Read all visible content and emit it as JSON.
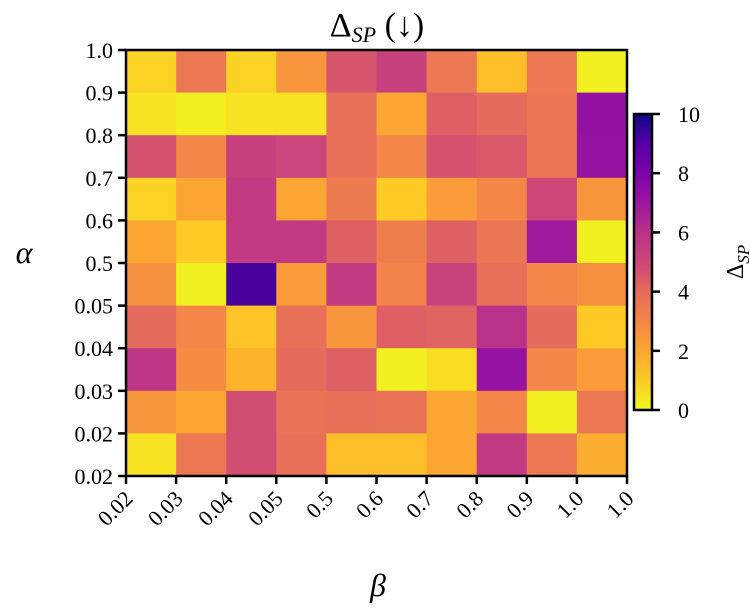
{
  "chart_data": {
    "type": "heatmap",
    "title": "Δ_SP (↓)",
    "xlabel": "β",
    "ylabel": "α",
    "x_categories": [
      "0.02",
      "0.03",
      "0.04",
      "0.05",
      "0.5",
      "0.6",
      "0.7",
      "0.8",
      "0.9",
      "1.0"
    ],
    "y_categories_top_to_bottom": [
      "1.0",
      "0.9",
      "0.8",
      "0.7",
      "0.6",
      "0.5",
      "0.05",
      "0.04",
      "0.03",
      "0.02"
    ],
    "values_top_to_bottom": [
      [
        0.8,
        3.5,
        0.8,
        2.5,
        4.6,
        5.3,
        3.5,
        1.3,
        3.5,
        0.2
      ],
      [
        0.5,
        0.2,
        0.5,
        0.5,
        3.8,
        2.0,
        4.3,
        4.0,
        3.6,
        7.3
      ],
      [
        4.7,
        3.0,
        5.3,
        5.1,
        3.8,
        3.0,
        4.7,
        4.5,
        3.6,
        7.2
      ],
      [
        0.8,
        2.0,
        5.6,
        2.0,
        3.4,
        1.0,
        2.3,
        3.0,
        5.0,
        2.5
      ],
      [
        2.0,
        1.0,
        5.6,
        5.6,
        4.3,
        3.3,
        4.3,
        3.6,
        6.9,
        0.2
      ],
      [
        2.7,
        0.2,
        9.2,
        2.3,
        5.6,
        3.1,
        5.2,
        3.8,
        3.0,
        2.7
      ],
      [
        4.0,
        3.0,
        1.2,
        3.8,
        2.5,
        4.3,
        4.2,
        6.0,
        4.0,
        1.0
      ],
      [
        5.8,
        2.8,
        1.6,
        4.0,
        4.3,
        0.2,
        0.6,
        7.2,
        3.0,
        2.3
      ],
      [
        2.5,
        2.0,
        4.8,
        3.7,
        3.8,
        3.7,
        2.0,
        3.0,
        0.2,
        3.5
      ],
      [
        0.5,
        3.5,
        4.8,
        3.8,
        1.3,
        1.3,
        2.0,
        5.6,
        3.5,
        1.8
      ]
    ],
    "colorbar": {
      "label": "Δ_SP",
      "range": [
        0,
        10
      ],
      "ticks": [
        0,
        2,
        4,
        6,
        8,
        10
      ],
      "colormap": "plasma_r"
    },
    "grid": false
  }
}
